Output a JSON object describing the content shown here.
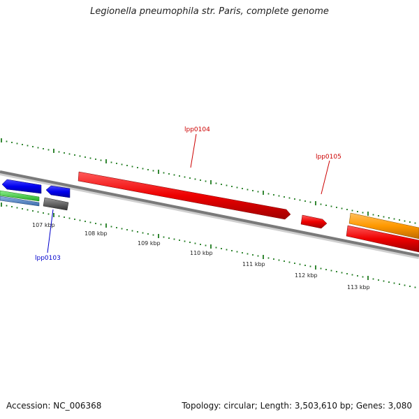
{
  "title": "Legionella pneumophila str. Paris, complete genome",
  "footer": {
    "accession": "Accession: NC_006368",
    "summary": "Topology: circular; Length: 3,503,610 bp; Genes: 3,080"
  },
  "scale_labels": [
    "107 kbp",
    "108 kbp",
    "109 kbp",
    "110 kbp",
    "111 kbp",
    "112 kbp",
    "113 kbp"
  ],
  "gene_labels": [
    {
      "id": "lpp0103",
      "text": "lpp0103",
      "color": "#0000cc"
    },
    {
      "id": "lpp0104",
      "text": "lpp0104",
      "color": "#cc0000"
    },
    {
      "id": "lpp0105",
      "text": "lpp0105",
      "color": "#cc0000"
    }
  ],
  "colors": {
    "backbone": "#7a7a7a",
    "tick": "#1e7a1e",
    "red_gene": "#ee0000",
    "blue_gene": "#0000ee",
    "orange_gene": "#ff9900",
    "green_gene": "#33cc33",
    "steelblue_gene": "#5588cc",
    "gray_gene": "#555555"
  }
}
